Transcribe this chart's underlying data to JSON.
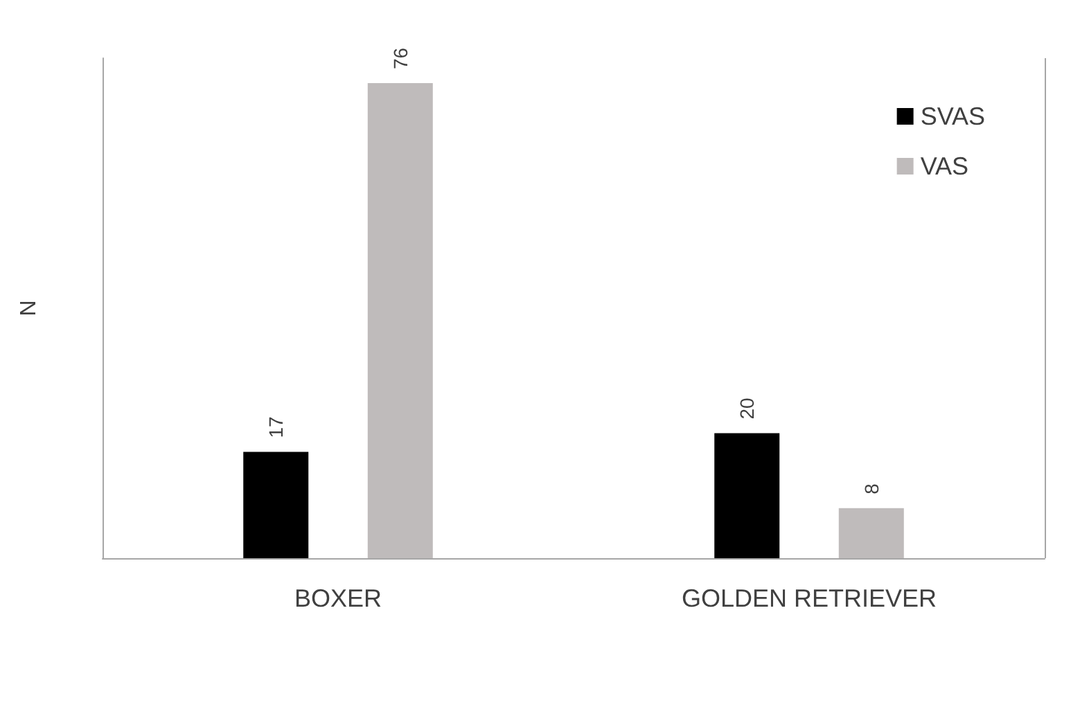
{
  "chart_data": {
    "type": "bar",
    "ylabel": "N",
    "categories": [
      "BOXER",
      "GOLDEN RETRIEVER"
    ],
    "series": [
      {
        "name": "SVAS",
        "color": "#000000",
        "values": [
          17,
          20
        ]
      },
      {
        "name": "VAS",
        "color": "#bfbbbb",
        "values": [
          76,
          8
        ]
      }
    ],
    "data_labels": true,
    "legend": "top right",
    "grid": false
  }
}
